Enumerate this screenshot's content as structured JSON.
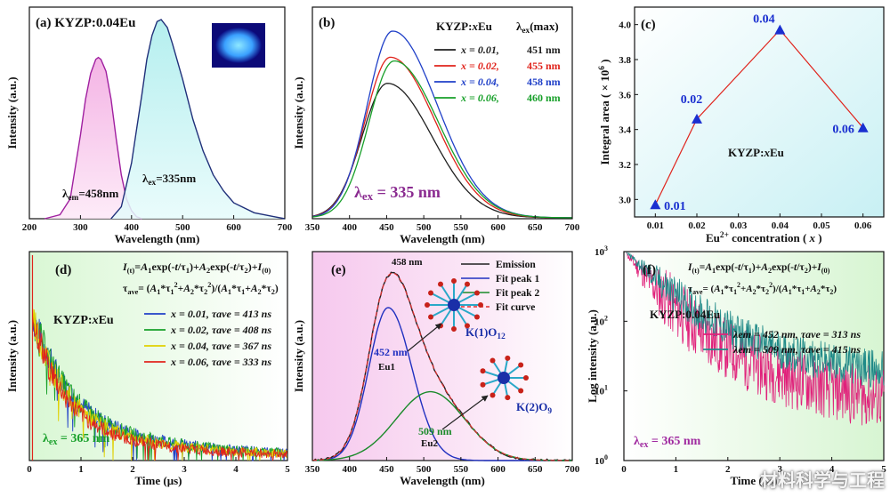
{
  "watermark": "材料科学与工程",
  "chart_data": [
    {
      "panel": "(a)",
      "type": "line",
      "title": "KYZP:0.04Eu",
      "xlabel": "Wavelength (nm)",
      "ylabel": "Intensity (a.u.)",
      "xlim": [
        200,
        700
      ],
      "xticks": [
        200,
        300,
        400,
        500,
        600,
        700
      ],
      "series": [
        {
          "name": "excitation",
          "label": "λem=458nm",
          "color": "#a020a0",
          "fill": "#f5b6e8",
          "x": [
            230,
            260,
            280,
            300,
            310,
            320,
            330,
            335,
            340,
            350,
            360,
            370,
            380,
            390,
            400,
            410,
            420
          ],
          "y": [
            0,
            0.02,
            0.1,
            0.42,
            0.6,
            0.73,
            0.8,
            0.81,
            0.8,
            0.74,
            0.6,
            0.4,
            0.22,
            0.1,
            0.04,
            0.01,
            0
          ]
        },
        {
          "name": "emission",
          "label": "λex=335nm",
          "color": "#20307a",
          "fill": "#bfeef0",
          "x": [
            360,
            380,
            400,
            410,
            420,
            430,
            440,
            450,
            458,
            470,
            480,
            500,
            520,
            540,
            560,
            580,
            600,
            640,
            680,
            700
          ],
          "y": [
            0,
            0.06,
            0.28,
            0.45,
            0.62,
            0.8,
            0.92,
            0.99,
            1.0,
            0.96,
            0.88,
            0.7,
            0.5,
            0.34,
            0.22,
            0.14,
            0.08,
            0.03,
            0.01,
            0
          ]
        }
      ],
      "annotations": [
        "λem=458nm",
        "λex=335nm"
      ]
    },
    {
      "panel": "(b)",
      "type": "line",
      "xlabel": "Wavelength (nm)",
      "ylabel": "Intensity (a.u.)",
      "xlim": [
        350,
        700
      ],
      "xticks": [
        350,
        400,
        450,
        500,
        550,
        600,
        650,
        700
      ],
      "legend_title": [
        "KYZP:xEu",
        "λex(max)"
      ],
      "annotation": "λex = 335 nm",
      "series": [
        {
          "name": "x = 0.01,",
          "peak": "451 nm",
          "color": "#202020",
          "peak_x": 451,
          "amp": 0.72
        },
        {
          "name": "x = 0.02,",
          "peak": "455 nm",
          "color": "#e0241c",
          "peak_x": 455,
          "amp": 0.86
        },
        {
          "name": "x = 0.04,",
          "peak": "458 nm",
          "color": "#2040c8",
          "peak_x": 458,
          "amp": 1.0
        },
        {
          "name": "x = 0.06,",
          "peak": "460 nm",
          "color": "#18a02a",
          "peak_x": 460,
          "amp": 0.84
        }
      ]
    },
    {
      "panel": "(c)",
      "type": "scatter",
      "xlabel": "Eu2+ concentration ( x )",
      "ylabel": "Integral area ( × 10^6 )",
      "xlim": [
        0.005,
        0.065
      ],
      "ylim": [
        2.9,
        4.1
      ],
      "xticks": [
        "0.01",
        "0.02",
        "0.03",
        "0.04",
        "0.05",
        "0.06"
      ],
      "yticks": [
        "3.0",
        "3.2",
        "3.4",
        "3.6",
        "3.8",
        "4.0"
      ],
      "text": "KYZP:xEu",
      "points": [
        {
          "x": 0.01,
          "y": 2.97,
          "label": "0.01"
        },
        {
          "x": 0.02,
          "y": 3.46,
          "label": "0.02"
        },
        {
          "x": 0.04,
          "y": 3.97,
          "label": "0.04"
        },
        {
          "x": 0.06,
          "y": 3.41,
          "label": "0.06"
        }
      ]
    },
    {
      "panel": "(d)",
      "type": "line",
      "xlabel": "Time (μs)",
      "ylabel": "Intensity (a.u.)",
      "xlim": [
        0,
        5
      ],
      "xticks": [
        "0",
        "1",
        "2",
        "3",
        "4",
        "5"
      ],
      "text": "KYZP:xEu",
      "excitation": "λex = 365 nm",
      "formula1": "I(t)=A1exp(-t/τ1)+A2exp(-t/τ2)+I(0)",
      "formula2": "τave= (A1*τ1^2+A2*τ2^2)/(A1*τ1+A2*τ2)",
      "series": [
        {
          "name": "x = 0.01, τave = 413 ns",
          "color": "#2040c8",
          "tau": 0.413
        },
        {
          "name": "x = 0.02, τave = 408 ns",
          "color": "#18a02a",
          "tau": 0.408
        },
        {
          "name": "x = 0.04, τave = 367 ns",
          "color": "#e0d000",
          "tau": 0.367
        },
        {
          "name": "x = 0.06, τave = 333 ns",
          "color": "#e0241c",
          "tau": 0.333
        }
      ]
    },
    {
      "panel": "(e)",
      "type": "line",
      "xlabel": "Wavelength (nm)",
      "ylabel": "Intensity (a.u.)",
      "xlim": [
        350,
        700
      ],
      "xticks": [
        "350",
        "400",
        "450",
        "500",
        "550",
        "600",
        "650",
        "700"
      ],
      "peak_label": "458 nm",
      "peak1_label": [
        "452 nm",
        "Eu1"
      ],
      "peak2_label": [
        "509 nm",
        "Eu2"
      ],
      "site1": "K(1)O12",
      "site2": "K(2)O9",
      "series": [
        {
          "name": "Emission",
          "color": "#202020"
        },
        {
          "name": "Fit peak 1",
          "color": "#2030c0",
          "center": 452,
          "amp": 0.8
        },
        {
          "name": "Fit peak 2",
          "color": "#1a8a2a",
          "center": 509,
          "amp": 0.36
        },
        {
          "name": "Fit curve",
          "color": "#e03030",
          "dash": true
        }
      ]
    },
    {
      "panel": "(f)",
      "type": "line",
      "xlabel": "Time (μs)",
      "ylabel": "Log intensity (a.u.)",
      "yscale": "log",
      "xlim": [
        0,
        5
      ],
      "xticks": [
        "0",
        "1",
        "2",
        "3",
        "4",
        "5"
      ],
      "yticks": [
        "10^0",
        "10^1",
        "10^2",
        "10^3"
      ],
      "text": "KYZP:0.04Eu",
      "excitation": "λex = 365 nm",
      "formula1": "I(t)=A1exp(-t/τ1)+A2exp(-t/τ2)+I(0)",
      "formula2": "τave= (A1*τ1^2+A2*τ2^2)/(A1*τ1+A2*τ2)",
      "series": [
        {
          "name": "λem = 452 nm, τave = 313 ns",
          "color": "#e0207a",
          "tau": 0.313
        },
        {
          "name": "λem = 509 nm, τave = 415 ns",
          "color": "#208a88",
          "tau": 0.415
        }
      ]
    }
  ]
}
